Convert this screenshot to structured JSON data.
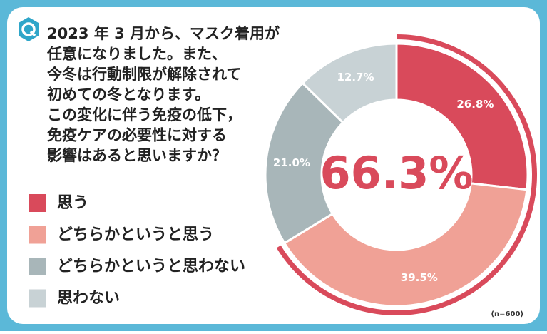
{
  "title_lines": [
    "2023 年 3 月から、マスク着用が",
    "任意になりました。また、",
    "今冬は行動制限が解除されて",
    "初めての冬となります。",
    "この変化に伴う免疫の低下，",
    "免疫ケアの必要性に対する",
    "影響はあると思いますか？"
  ],
  "chart_data": {
    "type": "pie",
    "categories": [
      "思う",
      "どちらかというと思う",
      "どちらかというと思わない",
      "思わない"
    ],
    "values": [
      26.8,
      39.5,
      21.0,
      12.7
    ],
    "value_labels": [
      "26.8%",
      "39.5%",
      "21.0%",
      "12.7%"
    ],
    "colors": [
      "#d94a5b",
      "#f0a196",
      "#a8b6b9",
      "#c8d2d5"
    ],
    "center_label": "66.3%",
    "note": "(n=600)"
  }
}
